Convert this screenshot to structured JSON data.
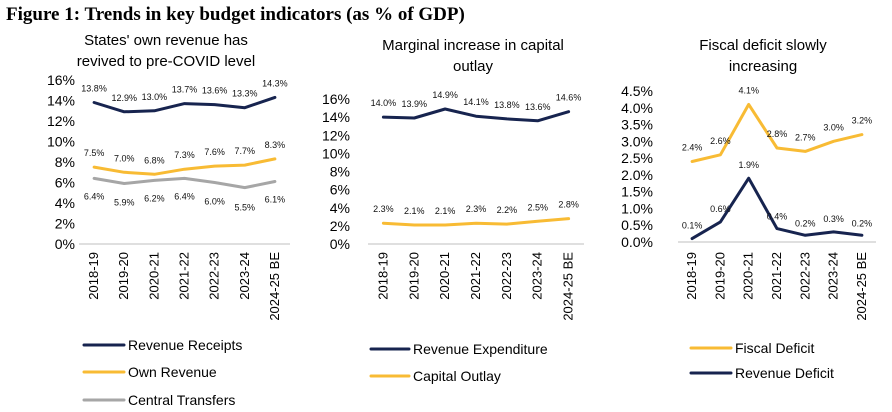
{
  "figure_title": "Figure 1: Trends in key budget indicators (as % of GDP)",
  "chart_data": [
    {
      "type": "line",
      "title": [
        "States' own revenue has",
        "revived to pre-COVID level"
      ],
      "categories": [
        "2018-19",
        "2019-20",
        "2020-21",
        "2021-22",
        "2022-23",
        "2023-24",
        "2024-25 BE"
      ],
      "yticks": [
        "0%",
        "2%",
        "4%",
        "6%",
        "8%",
        "10%",
        "12%",
        "14%",
        "16%"
      ],
      "ylim": [
        0,
        16
      ],
      "legend_position": "bottom",
      "series": [
        {
          "name": "Revenue Receipts",
          "color": "#17244f",
          "values": [
            13.8,
            12.9,
            13.0,
            13.7,
            13.6,
            13.3,
            14.3
          ],
          "labels": [
            "13.8%",
            "12.9%",
            "13.0%",
            "13.7%",
            "13.6%",
            "13.3%",
            "14.3%"
          ]
        },
        {
          "name": "Own Revenue",
          "color": "#f8bb34",
          "values": [
            7.5,
            7.0,
            6.8,
            7.3,
            7.6,
            7.7,
            8.3
          ],
          "labels": [
            "7.5%",
            "7.0%",
            "6.8%",
            "7.3%",
            "7.6%",
            "7.7%",
            "8.3%"
          ]
        },
        {
          "name": "Central Transfers",
          "color": "#a6a6a6",
          "values": [
            6.4,
            5.9,
            6.2,
            6.4,
            6.0,
            5.5,
            6.1
          ],
          "labels": [
            "6.4%",
            "5.9%",
            "6.2%",
            "6.4%",
            "6.0%",
            "5.5%",
            "6.1%"
          ]
        }
      ]
    },
    {
      "type": "line",
      "title": [
        "Marginal increase in capital",
        "outlay"
      ],
      "categories": [
        "2018-19",
        "2019-20",
        "2020-21",
        "2021-22",
        "2022-23",
        "2023-24",
        "2024-25 BE"
      ],
      "yticks": [
        "0%",
        "2%",
        "4%",
        "6%",
        "8%",
        "10%",
        "12%",
        "14%",
        "16%"
      ],
      "ylim": [
        0,
        16
      ],
      "legend_position": "bottom",
      "series": [
        {
          "name": "Revenue Expenditure",
          "color": "#17244f",
          "values": [
            14.0,
            13.9,
            14.9,
            14.1,
            13.8,
            13.6,
            14.6
          ],
          "labels": [
            "14.0%",
            "13.9%",
            "14.9%",
            "14.1%",
            "13.8%",
            "13.6%",
            "14.6%"
          ]
        },
        {
          "name": "Capital Outlay",
          "color": "#f8bb34",
          "values": [
            2.3,
            2.1,
            2.1,
            2.3,
            2.2,
            2.5,
            2.8
          ],
          "labels": [
            "2.3%",
            "2.1%",
            "2.1%",
            "2.3%",
            "2.2%",
            "2.5%",
            "2.8%"
          ]
        }
      ]
    },
    {
      "type": "line",
      "title": [
        "Fiscal deficit slowly",
        "increasing"
      ],
      "categories": [
        "2018-19",
        "2019-20",
        "2020-21",
        "2021-22",
        "2022-23",
        "2023-24",
        "2024-25 BE"
      ],
      "yticks": [
        "0.0%",
        "0.5%",
        "1.0%",
        "1.5%",
        "2.0%",
        "2.5%",
        "3.0%",
        "3.5%",
        "4.0%",
        "4.5%"
      ],
      "ylim": [
        0,
        4.5
      ],
      "legend_position": "bottom",
      "series": [
        {
          "name": "Fiscal Deficit",
          "color": "#f8bb34",
          "values": [
            2.4,
            2.6,
            4.1,
            2.8,
            2.7,
            3.0,
            3.2
          ],
          "labels": [
            "2.4%",
            "2.6%",
            "4.1%",
            "2.8%",
            "2.7%",
            "3.0%",
            "3.2%"
          ]
        },
        {
          "name": "Revenue Deficit",
          "color": "#17244f",
          "values": [
            0.1,
            0.6,
            1.9,
            0.4,
            0.2,
            0.3,
            0.2
          ],
          "labels": [
            "0.1%",
            "0.6%",
            "1.9%",
            "0.4%",
            "0.2%",
            "0.3%",
            "0.2%"
          ]
        }
      ]
    }
  ]
}
